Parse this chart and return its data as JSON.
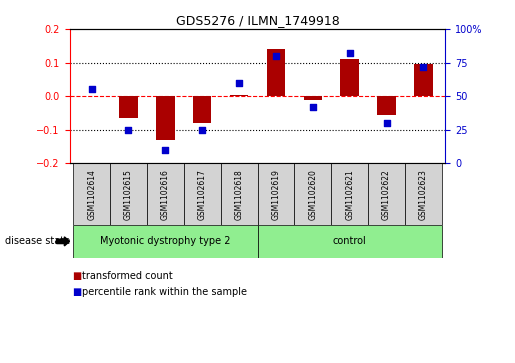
{
  "title": "GDS5276 / ILMN_1749918",
  "samples": [
    "GSM1102614",
    "GSM1102615",
    "GSM1102616",
    "GSM1102617",
    "GSM1102618",
    "GSM1102619",
    "GSM1102620",
    "GSM1102621",
    "GSM1102622",
    "GSM1102623"
  ],
  "bar_values": [
    0.002,
    -0.065,
    -0.13,
    -0.08,
    0.005,
    0.14,
    -0.01,
    0.11,
    -0.055,
    0.095
  ],
  "dot_values": [
    55,
    25,
    10,
    25,
    60,
    80,
    42,
    82,
    30,
    72
  ],
  "bar_color": "#AA0000",
  "dot_color": "#0000CC",
  "ylim_left": [
    -0.2,
    0.2
  ],
  "ylim_right": [
    0,
    100
  ],
  "yticks_left": [
    -0.2,
    -0.1,
    0.0,
    0.1,
    0.2
  ],
  "yticks_right": [
    0,
    25,
    50,
    75,
    100
  ],
  "ytick_labels_right": [
    "0",
    "25",
    "50",
    "75",
    "100%"
  ],
  "legend_bar_label": "transformed count",
  "legend_dot_label": "percentile rank within the sample",
  "disease_state_label": "disease state",
  "group1_label": "Myotonic dystrophy type 2",
  "group2_label": "control",
  "group_color": "#90EE90",
  "sample_bg_color": "#D3D3D3"
}
